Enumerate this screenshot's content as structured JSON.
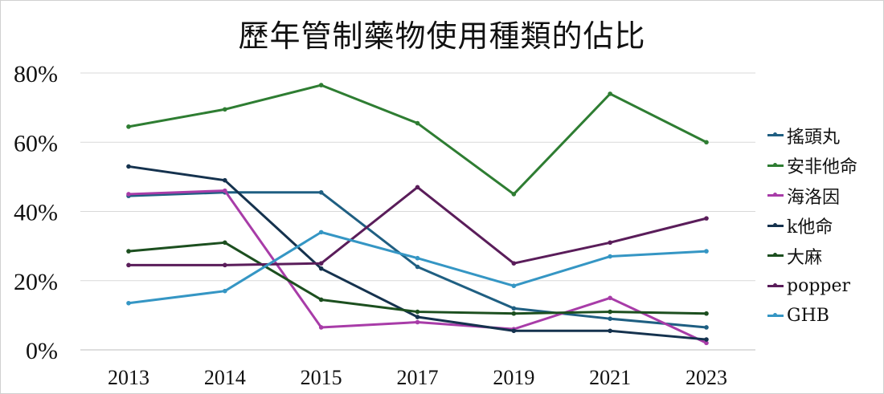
{
  "chart_data": {
    "type": "line",
    "title": "歷年管制藥物使用種類的佔比",
    "xlabel": "",
    "ylabel": "",
    "categories": [
      "2013",
      "2014",
      "2015",
      "2017",
      "2019",
      "2021",
      "2023"
    ],
    "ylim": [
      0,
      80
    ],
    "yticks": [
      "0%",
      "20%",
      "40%",
      "60%",
      "80%"
    ],
    "ytick_values": [
      0,
      20,
      40,
      60,
      80
    ],
    "grid": true,
    "legend_position": "right",
    "series": [
      {
        "name": "搖頭丸",
        "color": "#1f5f82",
        "values": [
          44.5,
          45.5,
          45.5,
          24.0,
          12.0,
          9.0,
          6.5
        ]
      },
      {
        "name": "安非他命",
        "color": "#2e7d32",
        "values": [
          64.5,
          69.5,
          76.5,
          65.5,
          45.0,
          74.0,
          60.0
        ]
      },
      {
        "name": "海洛因",
        "color": "#a83ca8",
        "values": [
          45.0,
          46.0,
          6.5,
          8.0,
          6.0,
          15.0,
          2.0
        ]
      },
      {
        "name": "k他命",
        "color": "#15324e",
        "values": [
          53.0,
          49.0,
          23.5,
          9.5,
          5.5,
          5.5,
          3.0
        ]
      },
      {
        "name": "大麻",
        "color": "#1c4f1f",
        "values": [
          28.5,
          31.0,
          14.5,
          11.0,
          10.5,
          11.0,
          10.5
        ]
      },
      {
        "name": "popper",
        "color": "#5a1d5a",
        "values": [
          24.5,
          24.5,
          25.0,
          47.0,
          25.0,
          31.0,
          38.0
        ]
      },
      {
        "name": "GHB",
        "color": "#3596c4",
        "values": [
          13.5,
          17.0,
          34.0,
          26.5,
          18.5,
          27.0,
          28.5
        ]
      }
    ]
  }
}
